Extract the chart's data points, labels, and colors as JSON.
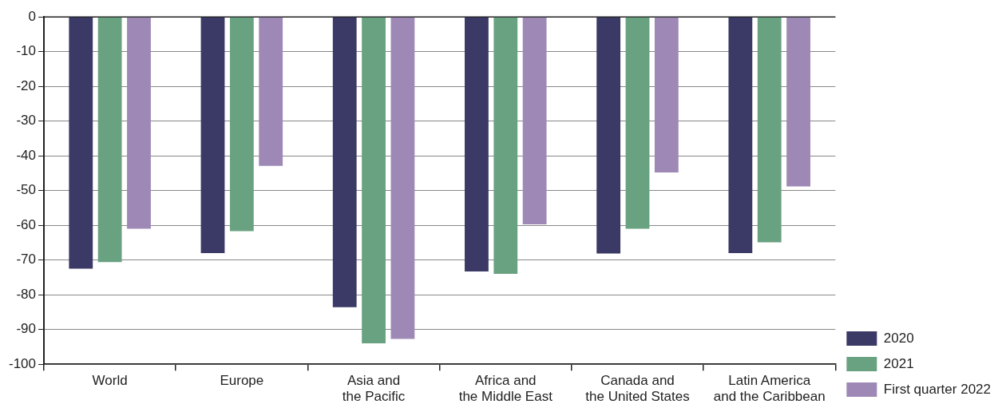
{
  "chart_data": {
    "type": "bar",
    "categories": [
      "World",
      "Europe",
      "Asia and\nthe Pacific",
      "Africa and\nthe Middle East",
      "Canada and\nthe United States",
      "Latin America\nand the Caribbean"
    ],
    "series": [
      {
        "name": "2020",
        "color": "#3b3966",
        "values": [
          -72.5,
          -68,
          -83.6,
          -73.3,
          -68.1,
          -68
        ]
      },
      {
        "name": "2021",
        "color": "#69a281",
        "values": [
          -70.6,
          -61.7,
          -94,
          -74,
          -61,
          -64.9
        ]
      },
      {
        "name": "First quarter 2022",
        "color": "#9e89b6",
        "values": [
          -61,
          -42.9,
          -92.7,
          -59.7,
          -44.8,
          -48.8
        ]
      }
    ],
    "ylim": [
      -100,
      0
    ],
    "yticks": [
      0,
      -10,
      -20,
      -30,
      -40,
      -50,
      -60,
      -70,
      -80,
      -90,
      -100
    ],
    "grid": "y",
    "legend": "bottom right"
  }
}
